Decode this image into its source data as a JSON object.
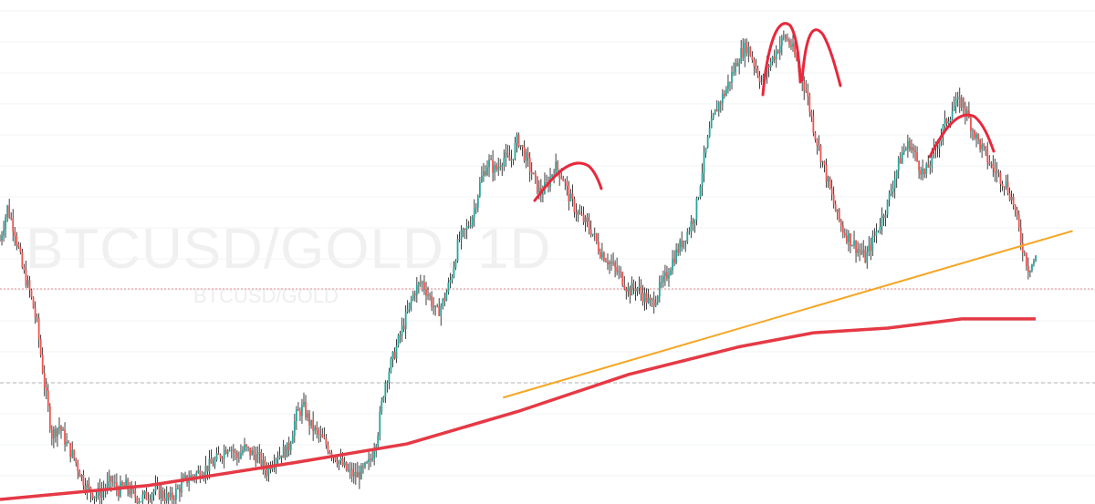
{
  "watermark": {
    "main": "BTCUSD/GOLD, 1D",
    "sub": "BTCUSD/GOLD"
  },
  "chart_data": {
    "type": "candlestick",
    "title": "BTCUSD/GOLD, 1D",
    "ylim": [
      0,
      100
    ],
    "grid": true,
    "colors": {
      "up": "#26a69a",
      "down": "#ef5350",
      "candle": "#111111",
      "moving_average": "#e53945",
      "trendline": "#f5a623",
      "pattern_marks": "#e8283c",
      "price_line": "#e88a8a",
      "reference_line": "#b0b0b0"
    },
    "close_path": [
      [
        0,
        56
      ],
      [
        1,
        63
      ],
      [
        2,
        58
      ],
      [
        3,
        50
      ],
      [
        4,
        45
      ],
      [
        5,
        38
      ],
      [
        6,
        25
      ],
      [
        7,
        14
      ],
      [
        8,
        16
      ],
      [
        9,
        12
      ],
      [
        10,
        9
      ],
      [
        11,
        5
      ],
      [
        12,
        2
      ],
      [
        13,
        1
      ],
      [
        14,
        2
      ],
      [
        15,
        4
      ],
      [
        16,
        2
      ],
      [
        17,
        3
      ],
      [
        18,
        1
      ],
      [
        19,
        0
      ],
      [
        20,
        1
      ],
      [
        21,
        2
      ],
      [
        22,
        1
      ],
      [
        23,
        0
      ],
      [
        24,
        2
      ],
      [
        25,
        4
      ],
      [
        26,
        5
      ],
      [
        27,
        6
      ],
      [
        28,
        7
      ],
      [
        29,
        8
      ],
      [
        30,
        10
      ],
      [
        31,
        12
      ],
      [
        32,
        9
      ],
      [
        33,
        11
      ],
      [
        34,
        10
      ],
      [
        35,
        9
      ],
      [
        36,
        6
      ],
      [
        37,
        9
      ],
      [
        38,
        10
      ],
      [
        39,
        11
      ],
      [
        40,
        18
      ],
      [
        41,
        20
      ],
      [
        42,
        16
      ],
      [
        43,
        14
      ],
      [
        44,
        12
      ],
      [
        45,
        10
      ],
      [
        46,
        8
      ],
      [
        47,
        6
      ],
      [
        48,
        5
      ],
      [
        49,
        6
      ],
      [
        50,
        8
      ],
      [
        51,
        14
      ],
      [
        52,
        25
      ],
      [
        53,
        30
      ],
      [
        54,
        35
      ],
      [
        55,
        40
      ],
      [
        56,
        45
      ],
      [
        57,
        47
      ],
      [
        58,
        44
      ],
      [
        59,
        40
      ],
      [
        60,
        43
      ],
      [
        61,
        48
      ],
      [
        62,
        56
      ],
      [
        63,
        58
      ],
      [
        64,
        62
      ],
      [
        65,
        69
      ],
      [
        66,
        73
      ],
      [
        67,
        71
      ],
      [
        68,
        74
      ],
      [
        69,
        73
      ],
      [
        70,
        78
      ],
      [
        71,
        74
      ],
      [
        72,
        70
      ],
      [
        73,
        66
      ],
      [
        74,
        68
      ],
      [
        75,
        72
      ],
      [
        76,
        70
      ],
      [
        77,
        65
      ],
      [
        78,
        62
      ],
      [
        79,
        60
      ],
      [
        80,
        58
      ],
      [
        81,
        54
      ],
      [
        82,
        52
      ],
      [
        83,
        50
      ],
      [
        84,
        48
      ],
      [
        85,
        45
      ],
      [
        86,
        46
      ],
      [
        87,
        44
      ],
      [
        88,
        42
      ],
      [
        89,
        45
      ],
      [
        90,
        48
      ],
      [
        91,
        52
      ],
      [
        92,
        55
      ],
      [
        93,
        58
      ],
      [
        94,
        62
      ],
      [
        95,
        72
      ],
      [
        96,
        80
      ],
      [
        97,
        85
      ],
      [
        98,
        88
      ],
      [
        99,
        92
      ],
      [
        100,
        96
      ],
      [
        101,
        98
      ],
      [
        102,
        94
      ],
      [
        103,
        90
      ],
      [
        104,
        94
      ],
      [
        105,
        97
      ],
      [
        106,
        100
      ],
      [
        107,
        98
      ],
      [
        108,
        93
      ],
      [
        109,
        88
      ],
      [
        110,
        80
      ],
      [
        111,
        74
      ],
      [
        112,
        68
      ],
      [
        113,
        62
      ],
      [
        114,
        58
      ],
      [
        115,
        56
      ],
      [
        116,
        54
      ],
      [
        117,
        52
      ],
      [
        118,
        56
      ],
      [
        119,
        60
      ],
      [
        120,
        64
      ],
      [
        121,
        70
      ],
      [
        122,
        75
      ],
      [
        123,
        77
      ],
      [
        124,
        73
      ],
      [
        125,
        70
      ],
      [
        126,
        74
      ],
      [
        127,
        78
      ],
      [
        128,
        82
      ],
      [
        129,
        85
      ],
      [
        130,
        86
      ],
      [
        131,
        82
      ],
      [
        132,
        78
      ],
      [
        133,
        75
      ],
      [
        134,
        72
      ],
      [
        135,
        70
      ],
      [
        136,
        68
      ],
      [
        137,
        64
      ],
      [
        138,
        56
      ],
      [
        139,
        50
      ],
      [
        140,
        52
      ]
    ],
    "moving_average": [
      [
        0,
        0
      ],
      [
        20,
        3
      ],
      [
        40,
        8
      ],
      [
        55,
        12
      ],
      [
        70,
        19
      ],
      [
        85,
        27
      ],
      [
        100,
        33
      ],
      [
        110,
        36
      ],
      [
        120,
        37
      ],
      [
        130,
        39
      ],
      [
        140,
        39
      ]
    ],
    "trendline": [
      [
        68,
        22
      ],
      [
        145,
        58
      ]
    ],
    "annotations": [
      "top-1",
      "top-2a",
      "top-2b",
      "top-3"
    ]
  }
}
